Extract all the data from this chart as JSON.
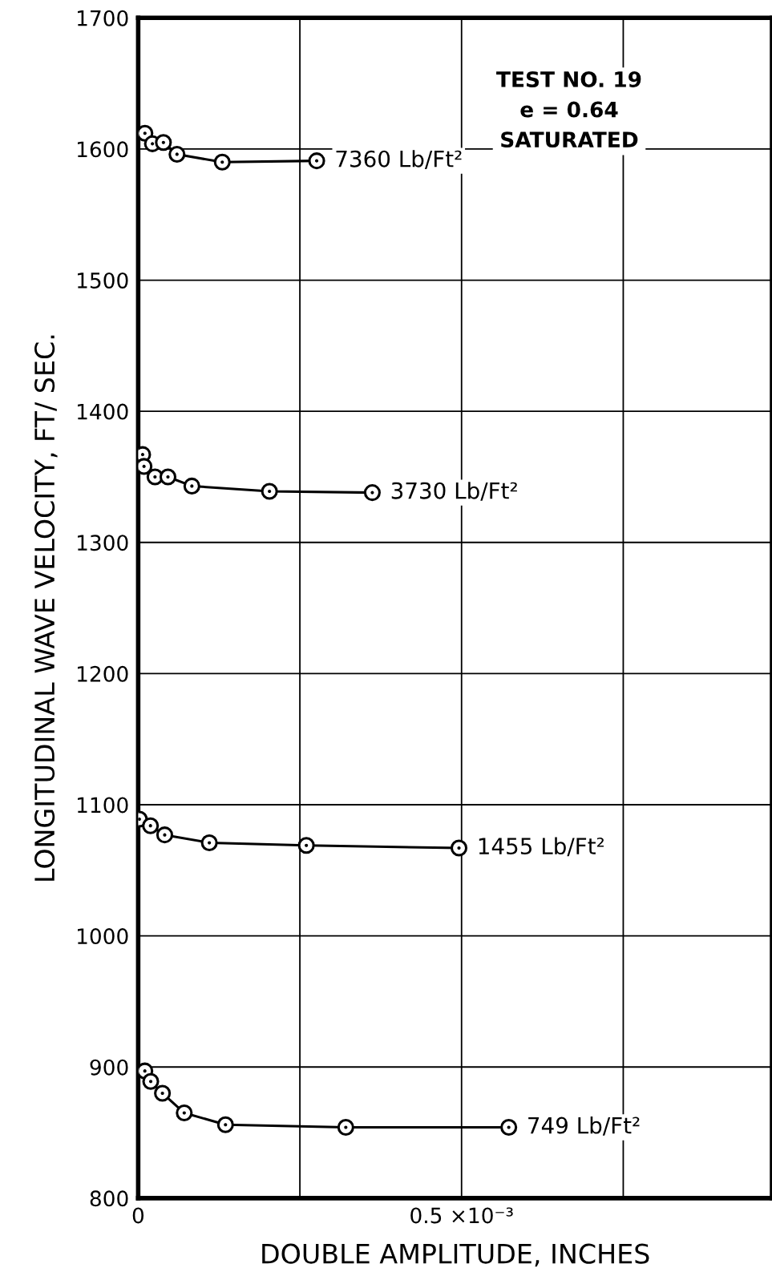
{
  "chart_data": {
    "type": "line",
    "xlabel": "DOUBLE AMPLITUDE, INCHES",
    "ylabel": "LONGITUDINAL WAVE VELOCITY, FT/ SEC.",
    "xlim": [
      0,
      0.00098
    ],
    "ylim": [
      800,
      1700
    ],
    "xticks": [
      0,
      {
        "value": 0.00025,
        "label": null
      },
      {
        "value": 0.0005,
        "label": "0.5 ×10⁻³"
      },
      {
        "value": 0.00075,
        "label": null
      }
    ],
    "yticks": [
      800,
      900,
      1000,
      1100,
      1200,
      1300,
      1400,
      1500,
      1600,
      1700
    ],
    "grid": true,
    "marker": "circle",
    "line_style": "solid",
    "series": [
      {
        "name": "7360 Lb/Ft²",
        "color": "#000000",
        "x": [
          1.04e-05,
          2.2e-05,
          3.9e-05,
          6e-05,
          0.00013,
          0.000276
        ],
        "values": [
          1612,
          1604,
          1605,
          1596,
          1590,
          1591
        ]
      },
      {
        "name": "3730 Lb/Ft²",
        "color": "#000000",
        "x": [
          6.9e-06,
          9e-06,
          2.6e-05,
          4.6e-05,
          8.3e-05,
          0.000203,
          0.000362
        ],
        "values": [
          1367,
          1358,
          1350,
          1350,
          1343,
          1339,
          1338
        ]
      },
      {
        "name": "1455 Lb/Ft²",
        "color": "#000000",
        "x": [
          1.8e-06,
          1.9e-05,
          4.1e-05,
          0.00011,
          0.00026,
          0.000496
        ],
        "values": [
          1089,
          1084,
          1077,
          1071,
          1069,
          1067
        ]
      },
      {
        "name": "749 Lb/Ft²",
        "color": "#000000",
        "x": [
          1.03e-05,
          1.94e-05,
          3.75e-05,
          7.12e-05,
          0.000135,
          0.000321,
          0.000573
        ],
        "values": [
          897,
          889,
          880,
          865,
          856,
          854,
          854
        ]
      }
    ],
    "annotations": [
      "TEST NO. 19\ne = 0.64\nSATURATED"
    ]
  }
}
